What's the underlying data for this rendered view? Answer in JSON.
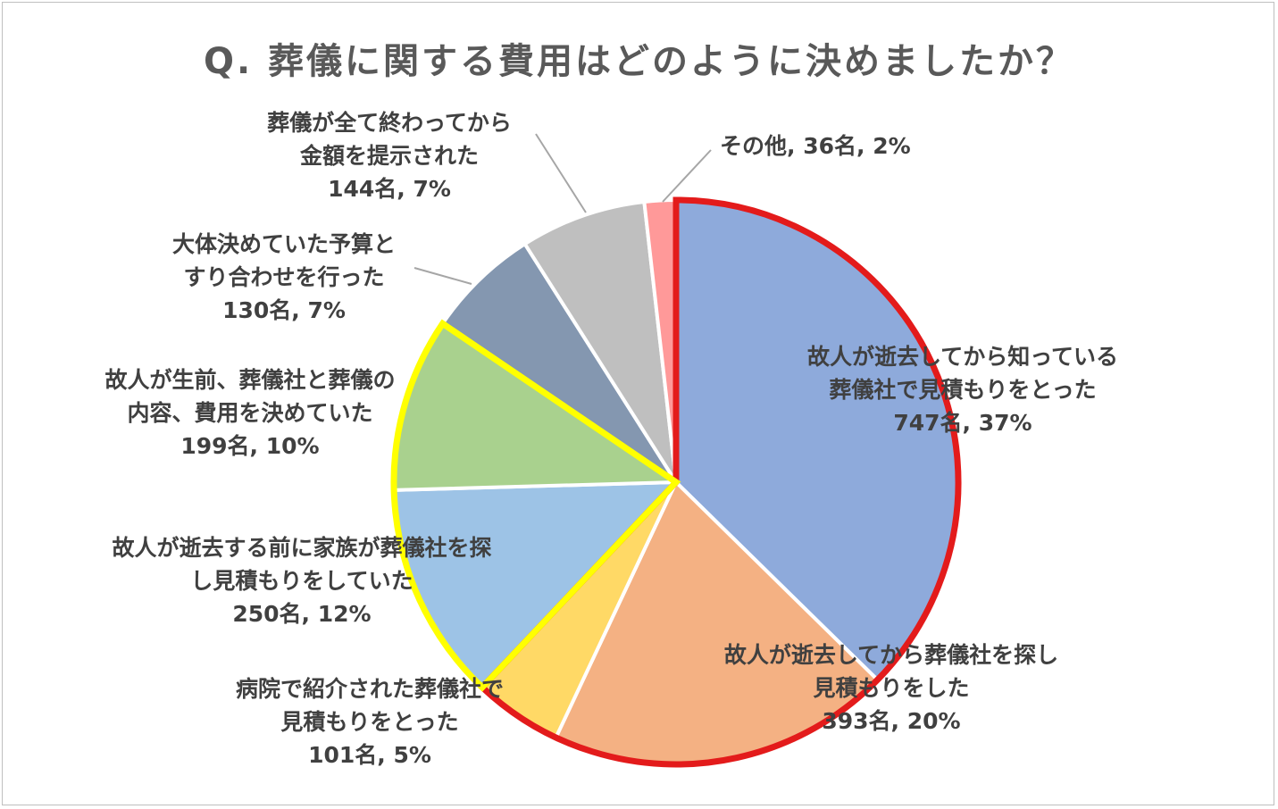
{
  "chart_data": {
    "type": "pie",
    "title": "Q.  葬儀に関する費用はどのように決めましたか？",
    "slices": [
      {
        "label_lines": [
          "故人が逝去してから知っている",
          "葬儀社で見積もりをとった"
        ],
        "count": 747,
        "percent": 37,
        "value_text": "747名, 37%",
        "color": "#8eaadb",
        "outline": "#e31b1b"
      },
      {
        "label_lines": [
          "故人が逝去してから葬儀社を探し",
          "見積もりをした"
        ],
        "count": 393,
        "percent": 20,
        "value_text": "393名, 20%",
        "color": "#f4b183",
        "outline": "#e31b1b"
      },
      {
        "label_lines": [
          "病院で紹介された葬儀社で",
          "見積もりをとった"
        ],
        "count": 101,
        "percent": 5,
        "value_text": "101名, 5%",
        "color": "#ffd966",
        "outline": "#e31b1b"
      },
      {
        "label_lines": [
          "故人が逝去する前に家族が葬儀社を探",
          "し見積もりをしていた"
        ],
        "count": 250,
        "percent": 12,
        "value_text": "250名, 12%",
        "color": "#9dc3e6",
        "outline": "#ffff00"
      },
      {
        "label_lines": [
          "故人が生前、葬儀社と葬儀の",
          "内容、費用を決めていた"
        ],
        "count": 199,
        "percent": 10,
        "value_text": "199名, 10%",
        "color": "#a9d18e",
        "outline": "#ffff00"
      },
      {
        "label_lines": [
          "大体決めていた予算と",
          "すり合わせを行った"
        ],
        "count": 130,
        "percent": 7,
        "value_text": "130名, 7%",
        "color": "#8497b0",
        "outline": ""
      },
      {
        "label_lines": [
          "葬儀が全て終わってから",
          "金額を提示された"
        ],
        "count": 144,
        "percent": 7,
        "value_text": "144名, 7%",
        "color": "#bfbfbf",
        "outline": ""
      },
      {
        "label_lines": [],
        "count": 36,
        "percent": 2,
        "value_text": "その他, 36名, 2%",
        "color": "#ff9999",
        "outline": ""
      }
    ]
  }
}
